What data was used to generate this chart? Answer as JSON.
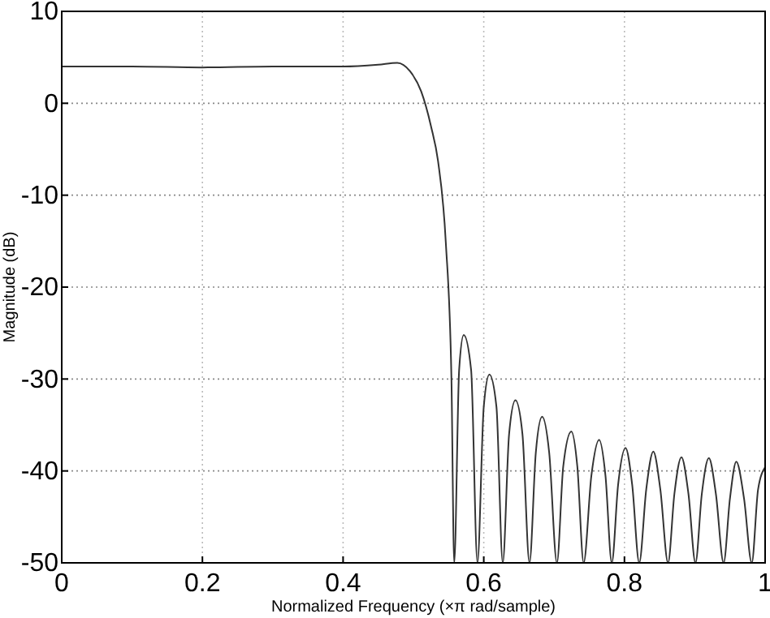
{
  "chart_data": {
    "type": "line",
    "xlabel": "Normalized Frequency  (×π rad/sample)",
    "ylabel": "Magnitude (dB)",
    "xlim": [
      0,
      1
    ],
    "ylim": [
      -50,
      10
    ],
    "xticks": [
      0,
      0.2,
      0.4,
      0.6,
      0.8,
      1
    ],
    "yticks": [
      -50,
      -40,
      -30,
      -20,
      -10,
      0,
      10
    ],
    "grid": true,
    "series": [
      {
        "color": "#333333",
        "x": [
          0,
          0.1,
          0.2,
          0.3,
          0.4,
          0.45,
          0.477,
          0.495,
          0.511,
          0.525,
          0.535,
          0.546,
          0.554,
          0.558,
          0.565,
          0.5715,
          0.582,
          0.591,
          0.6,
          0.608,
          0.618,
          0.627,
          0.636,
          0.645,
          0.655,
          0.665,
          0.674,
          0.683,
          0.693,
          0.704,
          0.713,
          0.7245,
          0.733,
          0.742,
          0.753,
          0.764,
          0.773,
          0.782,
          0.791,
          0.8015,
          0.811,
          0.821,
          0.831,
          0.841,
          0.851,
          0.862,
          0.871,
          0.881,
          0.891,
          0.901,
          0.91,
          0.92,
          0.93,
          0.941,
          0.95,
          0.959,
          0.97,
          0.981,
          0.99,
          1
        ],
        "values": [
          4.0,
          4.0,
          3.9,
          4.0,
          4.0,
          4.2,
          4.4,
          3.5,
          1.3,
          -2.5,
          -6.3,
          -15.1,
          -29.8,
          -50,
          -29,
          -25.2,
          -29,
          -50,
          -33,
          -29.5,
          -33,
          -50,
          -36,
          -32.3,
          -36,
          -50,
          -38,
          -34.1,
          -38,
          -50,
          -39.5,
          -35.7,
          -39.5,
          -50,
          -40.5,
          -36.6,
          -40.5,
          -50,
          -41.5,
          -37.5,
          -41.5,
          -50,
          -42,
          -37.9,
          -42,
          -50,
          -42.5,
          -38.5,
          -42.5,
          -50,
          -42.5,
          -38.6,
          -42.5,
          -50,
          -43,
          -39,
          -43,
          -50,
          -42,
          -39.6
        ]
      }
    ]
  }
}
